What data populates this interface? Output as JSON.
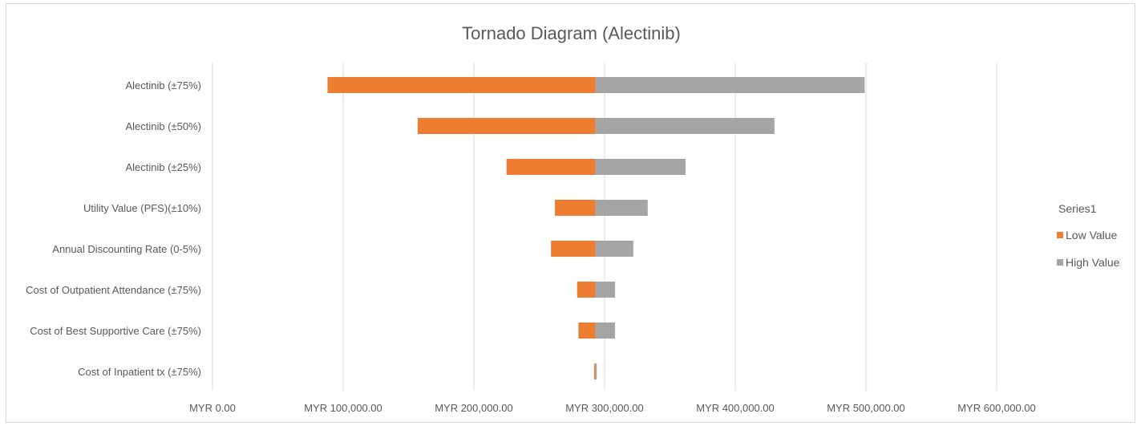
{
  "chart_data": {
    "type": "bar",
    "orientation": "horizontal",
    "title": "Tornado Diagram (Alectinib)",
    "xlabel": "",
    "ylabel": "",
    "base_value": 293000,
    "xlim": [
      0,
      600000
    ],
    "xticks": [
      0,
      100000,
      200000,
      300000,
      400000,
      500000,
      600000
    ],
    "tick_labels": [
      "MYR 0.00",
      "MYR 100,000.00",
      "MYR 200,000.00",
      "MYR 300,000.00",
      "MYR 400,000.00",
      "MYR 500,000.00",
      "MYR 600,000.00"
    ],
    "categories": [
      "Alectinib (±75%)",
      "Alectinib (±50%)",
      "Alectinib (±25%)",
      "Utility Value (PFS)(±10%)",
      "Annual Discounting Rate (0-5%)",
      "Cost of Outpatient Attendance (±75%)",
      "Cost of Best Supportive Care (±75%)",
      "Cost of Inpatient tx (±75%)"
    ],
    "series": [
      {
        "name": "Low Value",
        "color": "#ed7d31",
        "values": [
          88000,
          157000,
          225000,
          262000,
          259000,
          279000,
          280000,
          292000
        ]
      },
      {
        "name": "High Value",
        "color": "#a5a5a5",
        "values": [
          499000,
          430000,
          362000,
          333000,
          322000,
          308000,
          308000,
          294000
        ]
      }
    ],
    "grid": true,
    "legend_title": "Series1",
    "legend_position": "right"
  }
}
